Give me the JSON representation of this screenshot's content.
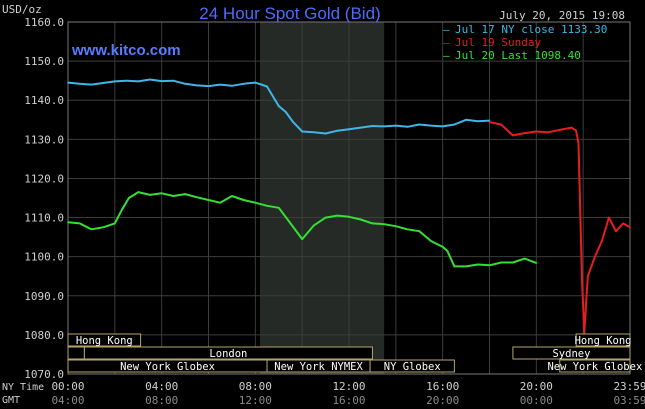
{
  "header": {
    "unit": "USD/oz",
    "title": "24 Hour Spot Gold (Bid)",
    "timestamp": "July 20, 2015 19:08",
    "watermark": "www.kitco.com"
  },
  "colors": {
    "background": "#000000",
    "plot_bg": "#000000",
    "shade": "#262a26",
    "grid": "#3c3c3c",
    "axis_text": "#d0d0d0",
    "title": "#4a6cff",
    "watermark": "#5a7dff",
    "session_border": "#b8a46a",
    "session_text": "#ffffff",
    "series_blue": "#3fb7e6",
    "series_red": "#e61e1e",
    "series_green": "#33e033"
  },
  "chart_data": {
    "type": "line",
    "ylim": [
      1070,
      1160
    ],
    "yticks": [
      1070,
      1080,
      1090,
      1100,
      1110,
      1120,
      1130,
      1140,
      1150,
      1160
    ],
    "ytick_labels": [
      "1070.0",
      "1080.0",
      "1090.0",
      "1100.0",
      "1110.0",
      "1120.0",
      "1130.0",
      "1140.0",
      "1150.0",
      "1160.0"
    ],
    "xlim": [
      0,
      24
    ],
    "xticks": [
      0,
      4,
      8,
      12,
      16,
      20,
      24
    ],
    "xtick_labels_ny": [
      "00:00",
      "04:00",
      "08:00",
      "12:00",
      "16:00",
      "20:00",
      "23:59"
    ],
    "xtick_labels_gmt": [
      "04:00",
      "08:00",
      "12:00",
      "16:00",
      "20:00",
      "00:00",
      "03:59"
    ],
    "xaxis_row_labels": [
      "NY Time",
      "GMT"
    ],
    "shaded_hours": [
      8.2,
      13.5
    ],
    "legend": [
      {
        "label": "Jul 17 NY close 1133.30",
        "color": "#3fb7e6"
      },
      {
        "label": "Jul 19 Sunday",
        "color": "#e61e1e"
      },
      {
        "label": "Jul 20 Last 1098.40",
        "color": "#33e033"
      }
    ],
    "series": [
      {
        "name": "Jul 17 NY close 1133.30",
        "color": "#3fb7e6",
        "x": [
          0,
          0.5,
          1,
          1.5,
          2,
          2.5,
          3,
          3.5,
          4,
          4.5,
          5,
          5.5,
          6,
          6.5,
          7,
          7.5,
          8,
          8.5,
          9,
          9.3,
          9.6,
          10,
          10.5,
          11,
          11.5,
          12,
          12.5,
          13,
          13.5,
          14,
          14.5,
          15,
          15.5,
          16,
          16.5,
          17,
          17.5,
          18
        ],
        "values": [
          1144.5,
          1144.2,
          1144.0,
          1144.4,
          1144.8,
          1145.0,
          1144.8,
          1145.3,
          1144.9,
          1145.0,
          1144.2,
          1143.8,
          1143.6,
          1144.0,
          1143.7,
          1144.2,
          1144.5,
          1143.5,
          1138.5,
          1137.0,
          1134.5,
          1132.0,
          1131.8,
          1131.5,
          1132.2,
          1132.6,
          1133.0,
          1133.4,
          1133.3,
          1133.5,
          1133.2,
          1133.8,
          1133.5,
          1133.3,
          1133.8,
          1135.0,
          1134.6,
          1134.8
        ]
      },
      {
        "name": "Jul 19 Sunday",
        "color": "#e61e1e",
        "x": [
          18,
          18.5,
          19,
          19.5,
          20,
          20.5,
          21,
          21.5,
          21.7,
          21.8,
          21.95,
          22.05,
          22.2,
          22.5,
          22.8,
          23.1,
          23.4,
          23.7,
          24
        ],
        "values": [
          1134.4,
          1133.8,
          1131.0,
          1131.6,
          1132.0,
          1131.8,
          1132.4,
          1133.0,
          1132.2,
          1129.0,
          1094.0,
          1080.5,
          1095.0,
          1100.0,
          1104.0,
          1110.0,
          1106.5,
          1108.5,
          1107.5
        ]
      },
      {
        "name": "Jul 20 Last 1098.40",
        "color": "#33e033",
        "x": [
          0,
          0.5,
          1,
          1.5,
          2,
          2.3,
          2.6,
          3,
          3.5,
          4,
          4.5,
          5,
          5.5,
          6,
          6.5,
          7,
          7.5,
          8,
          8.5,
          9,
          9.5,
          10,
          10.5,
          11,
          11.5,
          12,
          12.5,
          13,
          13.5,
          14,
          14.5,
          15,
          15.5,
          16,
          16.2,
          16.5,
          17,
          17.5,
          18,
          18.5,
          19,
          19.5,
          20
        ],
        "values": [
          1108.8,
          1108.5,
          1107.0,
          1107.5,
          1108.5,
          1112.0,
          1115.0,
          1116.5,
          1115.8,
          1116.2,
          1115.5,
          1116.0,
          1115.2,
          1114.5,
          1113.8,
          1115.5,
          1114.5,
          1113.8,
          1113.0,
          1112.5,
          1108.5,
          1104.5,
          1108.0,
          1110.0,
          1110.5,
          1110.2,
          1109.5,
          1108.5,
          1108.3,
          1107.8,
          1107.0,
          1106.5,
          1104.0,
          1102.5,
          1101.5,
          1097.5,
          1097.5,
          1098.0,
          1097.8,
          1098.5,
          1098.5,
          1099.5,
          1098.4
        ]
      }
    ],
    "sessions": [
      {
        "label": "Hong Kong",
        "row": 0,
        "start": 0,
        "end": 3.1
      },
      {
        "label": "Hong Kong",
        "row": 0,
        "start": 21.7,
        "end": 24
      },
      {
        "label": "Sydney",
        "row": 1,
        "start": 19.0,
        "end": 24
      },
      {
        "label": "",
        "row": 1,
        "start": 0,
        "end": 0.7
      },
      {
        "label": "London",
        "row": 1,
        "start": 0.7,
        "end": 13.0
      },
      {
        "label": "New York Globex",
        "row": 2,
        "start": 0,
        "end": 8.5
      },
      {
        "label": "New York NYMEX",
        "row": 2,
        "start": 8.5,
        "end": 12.9
      },
      {
        "label": "NY Globex",
        "row": 2,
        "start": 12.9,
        "end": 16.5
      },
      {
        "label": "New York Globex",
        "row": 2,
        "start": 21.0,
        "end": 24
      }
    ]
  }
}
